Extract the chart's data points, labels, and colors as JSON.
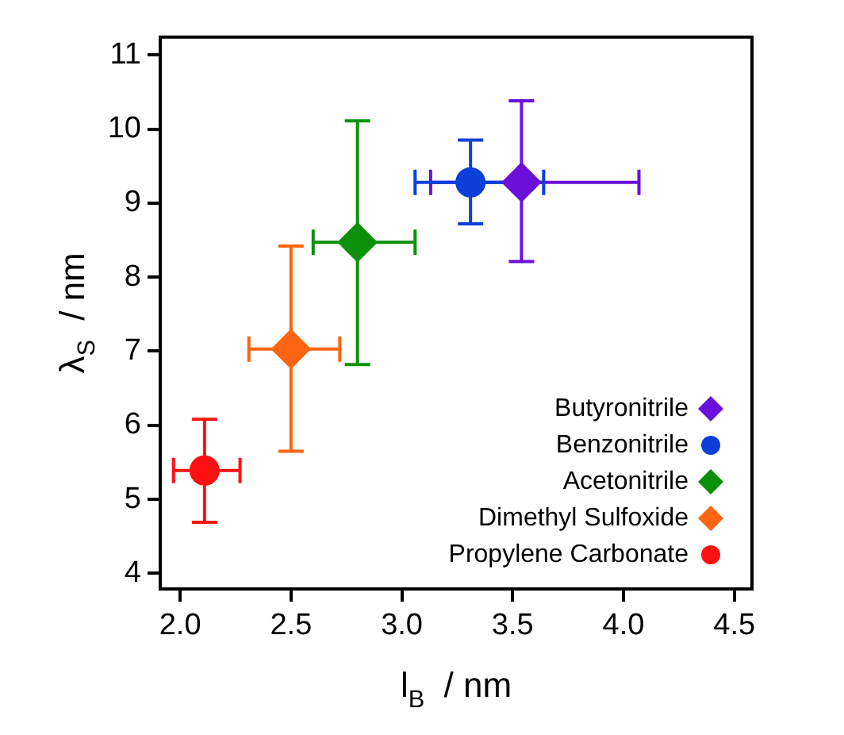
{
  "chart_data": {
    "type": "scatter",
    "xlabel": "l$_{B}$ / nm",
    "ylabel": "λ$_{S}$ / nm",
    "xlim": [
      1.91,
      4.58
    ],
    "xticks": [
      {
        "value": 2,
        "label": "2.0"
      },
      {
        "value": 2.5,
        "label": "2.5"
      },
      {
        "value": 3,
        "label": "3.0"
      },
      {
        "value": 3.5,
        "label": "3.5"
      },
      {
        "value": 4,
        "label": "4.0"
      },
      {
        "value": 4.5,
        "label": "4.5"
      }
    ],
    "ylim": [
      3.79,
      11.24
    ],
    "yticks": [
      4,
      5,
      6,
      7,
      8,
      9,
      10,
      11
    ],
    "grid": false,
    "legend": "bottom right",
    "series": [
      {
        "name": "Butyronitrile",
        "color": "#6a10d8",
        "marker": "diamond",
        "x": [
          3.54
        ],
        "values": [
          9.28
        ],
        "errors": [
          [
            8.21,
            10.38
          ]
        ],
        "xerrors": [
          [
            3.13,
            4.07
          ]
        ]
      },
      {
        "name": "Benzonitrile",
        "color": "#0a3fd8",
        "marker": "circle",
        "x": [
          3.31
        ],
        "values": [
          9.28
        ],
        "errors": [
          [
            8.72,
            9.85
          ]
        ],
        "xerrors": [
          [
            3.06,
            3.64
          ]
        ]
      },
      {
        "name": "Acetonitrile",
        "color": "#0a900a",
        "marker": "diamond",
        "x": [
          2.8
        ],
        "values": [
          8.47
        ],
        "errors": [
          [
            6.82,
            10.11
          ]
        ],
        "xerrors": [
          [
            2.6,
            3.06
          ]
        ]
      },
      {
        "name": "Dimethyl Sulfoxide",
        "color": "#ff6410",
        "marker": "diamond",
        "x": [
          2.5
        ],
        "values": [
          7.03
        ],
        "errors": [
          [
            5.65,
            8.42
          ]
        ],
        "xerrors": [
          [
            2.31,
            2.72
          ]
        ]
      },
      {
        "name": "Propylene Carbonate",
        "color": "#ff1010",
        "marker": "circle",
        "x": [
          2.11
        ],
        "values": [
          5.39
        ],
        "errors": [
          [
            4.69,
            6.08
          ]
        ],
        "xerrors": [
          [
            1.97,
            2.27
          ]
        ]
      }
    ]
  }
}
